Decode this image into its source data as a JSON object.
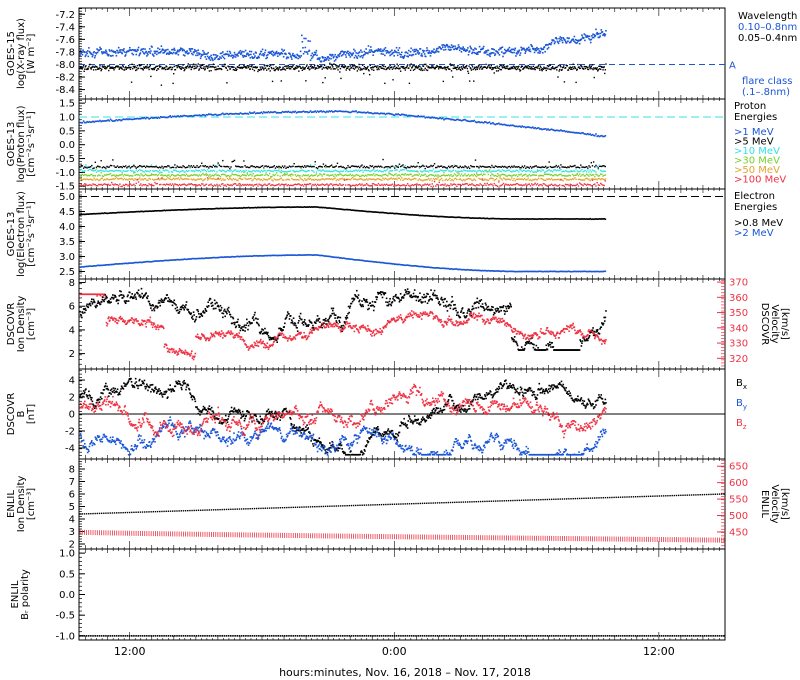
{
  "colors": {
    "black": "#000000",
    "blue": "#1a56d6",
    "cyan": "#35e3e3",
    "green": "#77d22a",
    "orange": "#e5a330",
    "red": "#ee3344",
    "dash_blue": "#1a56d6"
  },
  "xaxis": {
    "label": "hours:minutes, Nov. 16, 2018 – Nov. 17, 2018",
    "ticks": [
      "12:00",
      "0:00",
      "12:00"
    ],
    "tick_hours": [
      12,
      24,
      36
    ],
    "range_hours": [
      9.7,
      39.0
    ],
    "data_end_hours": 33.6
  },
  "chart_data": [
    {
      "id": "xray",
      "type": "scatter",
      "ylabel": [
        "GOES-15",
        "log(X-ray flux)",
        "[W m⁻²]"
      ],
      "yticks": [
        "-7.2",
        "-7.4",
        "-7.6",
        "-7.8",
        "-8.0",
        "-8.2",
        "-8.4"
      ],
      "ylim": [
        -8.55,
        -7.1
      ],
      "flare_threshold": -8.0,
      "flare_label": "A",
      "legend_title": "Wavelength",
      "series": [
        {
          "name": "0.10–0.8nm",
          "color": "blue",
          "mean": -7.82,
          "y_at_end": -7.5
        },
        {
          "name": "0.05–0.4nm",
          "color": "black",
          "mean": -8.05
        }
      ],
      "legend_extra": [
        "flare class",
        "(.1–.8nm)"
      ]
    },
    {
      "id": "proton",
      "type": "scatter",
      "ylabel": [
        "GOES-13",
        "log(Proton flux)",
        "[cm⁻²s⁻¹sr⁻¹]"
      ],
      "yticks": [
        "1.5",
        "1.0",
        "0.5",
        "0.0",
        "-0.5",
        "-1.0",
        "-1.5"
      ],
      "ylim": [
        -1.6,
        1.65
      ],
      "threshold": 1.0,
      "legend_title": [
        "Proton",
        "Energies"
      ],
      "series": [
        {
          "name": ">1 MeV",
          "color": "blue",
          "peak": 1.2,
          "start": 0.8,
          "end": 0.3
        },
        {
          "name": ">5 MeV",
          "color": "black",
          "mean": -0.8
        },
        {
          "name": ">10 MeV",
          "color": "cyan",
          "mean": -0.95
        },
        {
          "name": ">30 MeV",
          "color": "green",
          "mean": -1.1
        },
        {
          "name": ">50 MeV",
          "color": "orange",
          "mean": -1.25
        },
        {
          "name": ">100 MeV",
          "color": "red",
          "mean": -1.45
        }
      ]
    },
    {
      "id": "electron",
      "type": "line",
      "ylabel": [
        "GOES-13",
        "log(Electron flux)",
        "[cm⁻²s⁻¹sr⁻¹]"
      ],
      "yticks": [
        "5.0",
        "4.5",
        "4.0",
        "3.5",
        "3.0",
        "2.5"
      ],
      "ylim": [
        2.25,
        5.25
      ],
      "threshold": 5.0,
      "legend_title": [
        "Electron",
        "Energies"
      ],
      "series": [
        {
          "name": ">0.8 MeV",
          "color": "black",
          "start": 4.4,
          "peak": 4.65,
          "end": 4.25
        },
        {
          "name": ">2 MeV",
          "color": "blue",
          "start": 2.65,
          "peak": 3.05,
          "end": 2.5
        }
      ]
    },
    {
      "id": "dscovr_density",
      "type": "scatter",
      "ylabel": [
        "DSCOVR",
        "Ion Density",
        "[cm⁻³]"
      ],
      "yticks": [
        "8",
        "6",
        "4",
        "2"
      ],
      "ylim": [
        0.7,
        8.3
      ],
      "y2label": [
        "DSCOVR",
        "Velocity",
        "[km/s]"
      ],
      "y2ticks": [
        "370",
        "360",
        "350",
        "340",
        "330",
        "320"
      ],
      "y2lim": [
        313,
        372
      ],
      "series": [
        {
          "name": "Ion Density",
          "color": "black",
          "axis": "left",
          "mean": 6.0
        },
        {
          "name": "Velocity",
          "color": "red",
          "axis": "right",
          "mean": 340
        }
      ]
    },
    {
      "id": "dscovr_b",
      "type": "scatter",
      "ylabel": [
        "DSCOVR",
        "B",
        "[nT]"
      ],
      "yticks": [
        "4",
        "2",
        "0",
        "-2",
        "-4"
      ],
      "ylim": [
        -5.3,
        5.3
      ],
      "series": [
        {
          "name": "Bx",
          "color": "black"
        },
        {
          "name": "By",
          "color": "blue"
        },
        {
          "name": "Bz",
          "color": "red"
        }
      ]
    },
    {
      "id": "enlil_density",
      "type": "line",
      "ylabel": [
        "ENLIL",
        "Ion Density",
        "[cm⁻³]"
      ],
      "yticks": [
        "8",
        "7",
        "6",
        "5",
        "4",
        "3",
        "2"
      ],
      "ylim": [
        1.6,
        8.8
      ],
      "y2label": [
        "ENLIL",
        "Velocity",
        "[km/s]"
      ],
      "y2ticks": [
        "650",
        "600",
        "550",
        "500",
        "450"
      ],
      "y2lim": [
        398,
        672
      ],
      "series": [
        {
          "name": "Ion Density",
          "color": "black",
          "axis": "left",
          "start": 4.4,
          "end": 6.0
        },
        {
          "name": "Velocity",
          "color": "red",
          "axis": "right",
          "start": 449,
          "end": 425
        }
      ]
    },
    {
      "id": "enlil_polarity",
      "type": "line",
      "ylabel": [
        "ENLIL",
        "Bᵣ polarity"
      ],
      "yticks": [
        "1.0",
        "0.5",
        "0.0",
        "-0.5",
        "-1.0"
      ],
      "ylim": [
        -1.1,
        1.1
      ],
      "series": [
        {
          "name": "Br polarity",
          "color": "black",
          "value": -1.0
        }
      ]
    }
  ]
}
